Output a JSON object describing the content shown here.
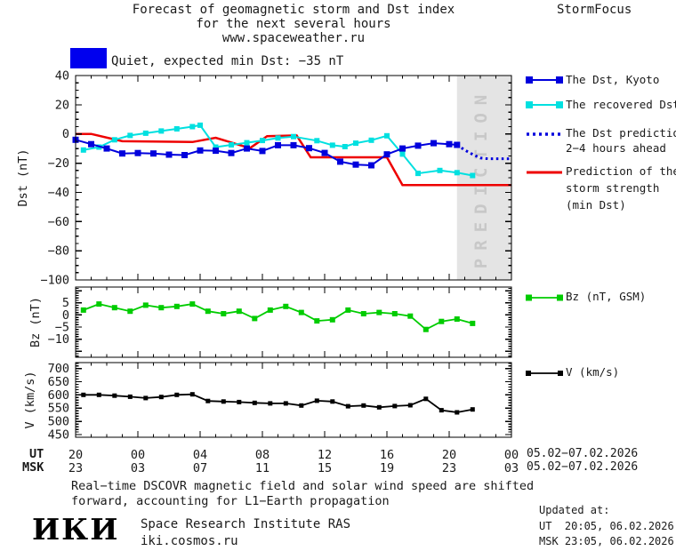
{
  "header": {
    "title_line1": "Forecast of geomagnetic storm and Dst index",
    "title_line2": "for the next several hours",
    "title_line3": "www.spaceweather.ru",
    "brand": "StormFocus",
    "status_text": "Quiet, expected min Dst: −35 nT"
  },
  "colors": {
    "dst_blue": "#0000DD",
    "recovered_cyan": "#00E0E0",
    "prediction_red": "#EE0000",
    "bz_green": "#00CC00",
    "v_black": "#000000",
    "quiet_blue": "#0000EE",
    "band_gray": "#E4E4E4",
    "band_label_gray": "#C8C8C8"
  },
  "legend": {
    "kyoto": "The Dst, Kyoto",
    "recovered": "The recovered Dst",
    "pred1": "The Dst prediction",
    "pred2": "2−4 hours ahead",
    "storm1": "Prediction of the",
    "storm2": "storm strength",
    "storm3": "(min Dst)",
    "bz": "Bz (nT, GSM)",
    "v": "V (km/s)"
  },
  "axis": {
    "ut_label": "UT",
    "msk_label": "MSK",
    "tick_hours": [
      0,
      4,
      8,
      12,
      16,
      20,
      24,
      28
    ],
    "ut_ticks": [
      "20",
      "00",
      "04",
      "08",
      "12",
      "16",
      "20",
      "00"
    ],
    "msk_ticks": [
      "23",
      "03",
      "07",
      "11",
      "15",
      "19",
      "23",
      "03"
    ],
    "date_ut": "05.02−07.02.2026",
    "date_msk": "05.02−07.02.2026"
  },
  "footer": {
    "note_line1": "Real−time DSCOVR magnetic field and solar wind speed are shifted",
    "note_line2": "forward, accounting for L1−Earth propagation",
    "logo": "ИКИ",
    "org_line1": "Space Research Institute RAS",
    "org_line2": "iki.cosmos.ru",
    "updated_label": "Updated at:",
    "updated_ut": "UT  20:05, 06.02.2026",
    "updated_msk": "MSK 23:05, 06.02.2026"
  },
  "chart_data": [
    {
      "type": "line",
      "name": "dst",
      "ylabel": "Dst (nT)",
      "ylim": [
        -100,
        40
      ],
      "yticks": [
        40,
        20,
        0,
        -20,
        -40,
        -60,
        -80,
        -100
      ],
      "ytick_major": 20,
      "ytick_minor": 5,
      "xlim": [
        0,
        28
      ],
      "xtick_major": 4,
      "xtick_minor": 1,
      "x_start_time_ut": "20:00 05.02.2026",
      "prediction_band": {
        "from_hour": 24.5,
        "to_hour": 28,
        "label": "PREDICTION"
      },
      "series": [
        {
          "name": "storm-strength-prediction",
          "label": "Prediction of the storm strength (min Dst)",
          "color": "#EE0000",
          "width": 2.5,
          "x": [
            0,
            1,
            3,
            7.5,
            9,
            11.2,
            12.3,
            14.2,
            15.1,
            20,
            21,
            28
          ],
          "y": [
            0,
            0,
            -5,
            -5.5,
            -2.6,
            -9.7,
            -1.5,
            -1,
            -16,
            -16,
            -35,
            -35
          ]
        },
        {
          "name": "recovered-dst",
          "label": "The recovered Dst",
          "color": "#00E0E0",
          "width": 2,
          "marker": 6,
          "x": [
            0.5,
            1.5,
            2.5,
            3.5,
            4.5,
            5.5,
            6.5,
            7.5,
            8,
            9,
            10,
            11,
            12,
            13,
            14,
            15.5,
            16.5,
            17.3,
            18,
            19,
            20,
            21,
            22,
            23.4,
            24.5,
            25.5
          ],
          "y": [
            -11,
            -9,
            -4,
            -1,
            0.5,
            2,
            3.5,
            5,
            6,
            -9,
            -7.5,
            -6,
            -4.5,
            -2.8,
            -1.8,
            -4.6,
            -7.7,
            -8.7,
            -6.3,
            -4.3,
            -1.3,
            -13.8,
            -27,
            -25,
            -26.5,
            -28.5
          ]
        },
        {
          "name": "dst-prediction-2-4h",
          "label": "The Dst prediction 2−4 hours ahead",
          "color": "#0000DD",
          "width": 3,
          "dotted": true,
          "x": [
            24.5,
            25,
            25.5,
            26,
            26.5,
            28
          ],
          "y": [
            -7.5,
            -11,
            -14,
            -16.5,
            -17,
            -17
          ]
        },
        {
          "name": "dst-kyoto",
          "label": "The Dst, Kyoto",
          "color": "#0000DD",
          "width": 2,
          "marker": 7,
          "x": [
            0,
            1,
            2,
            3,
            4,
            5,
            6,
            7,
            8,
            9,
            10,
            11,
            12,
            13,
            14,
            15,
            16,
            17,
            18,
            19,
            20,
            21,
            22,
            23,
            24,
            24.5
          ],
          "y": [
            -4,
            -7,
            -10,
            -13.4,
            -13.1,
            -13.4,
            -14.2,
            -14.5,
            -11.3,
            -11.5,
            -13.1,
            -10,
            -11.7,
            -7.7,
            -7.7,
            -9.7,
            -13,
            -19,
            -21,
            -21.5,
            -14,
            -10,
            -8,
            -6.3,
            -7,
            -7.5
          ]
        }
      ]
    },
    {
      "type": "line",
      "name": "bz",
      "ylabel": "Bz (nT)",
      "ylim": [
        -17.5,
        11.5
      ],
      "yticks": [
        5,
        0,
        -5,
        -10
      ],
      "ytick_major": 5,
      "ytick_minor": 1,
      "xlim": [
        0,
        28
      ],
      "xtick_major": 4,
      "xtick_minor": 1,
      "series": [
        {
          "name": "bz-gsm",
          "label": "Bz (nT, GSM)",
          "color": "#00CC00",
          "width": 1.8,
          "marker": 6,
          "x": [
            0.5,
            1.5,
            2.5,
            3.5,
            4.5,
            5.5,
            6.5,
            7.5,
            8.5,
            9.5,
            10.5,
            11.5,
            12.5,
            13.5,
            14.5,
            15.5,
            16.5,
            17.5,
            18.5,
            19.5,
            20.5,
            21.5,
            22.5,
            23.5,
            24.5,
            25.5
          ],
          "y": [
            2,
            4.5,
            3,
            1.5,
            4,
            3,
            3.5,
            4.5,
            1.5,
            0.5,
            1.5,
            -1.5,
            2,
            3.5,
            1,
            -2.5,
            -2,
            2,
            0.5,
            1,
            0.5,
            -0.5,
            -6,
            -2.7,
            -1.7,
            -3.5
          ]
        }
      ]
    },
    {
      "type": "line",
      "name": "v",
      "ylabel": "V (km/s)",
      "ylim": [
        440,
        722
      ],
      "yticks": [
        700,
        650,
        600,
        550,
        500,
        450
      ],
      "ytick_major": 50,
      "ytick_minor": 10,
      "xlim": [
        0,
        28
      ],
      "xtick_major": 4,
      "xtick_minor": 1,
      "series": [
        {
          "name": "solar-wind-speed",
          "label": "V (km/s)",
          "color": "#000000",
          "width": 1.8,
          "marker": 5,
          "x": [
            0.5,
            1.5,
            2.5,
            3.5,
            4.5,
            5.5,
            6.5,
            7.5,
            8.5,
            9.5,
            10.5,
            11.5,
            12.5,
            13.5,
            14.5,
            15.5,
            16.5,
            17.5,
            18.5,
            19.5,
            20.5,
            21.5,
            22.5,
            23.5,
            24.5,
            25.5
          ],
          "y": [
            600,
            600,
            597,
            593,
            588,
            592,
            600,
            602,
            577,
            575,
            573,
            570,
            568,
            568,
            560,
            578,
            575,
            557,
            560,
            553,
            558,
            561,
            585,
            542,
            534,
            545
          ]
        }
      ]
    }
  ]
}
